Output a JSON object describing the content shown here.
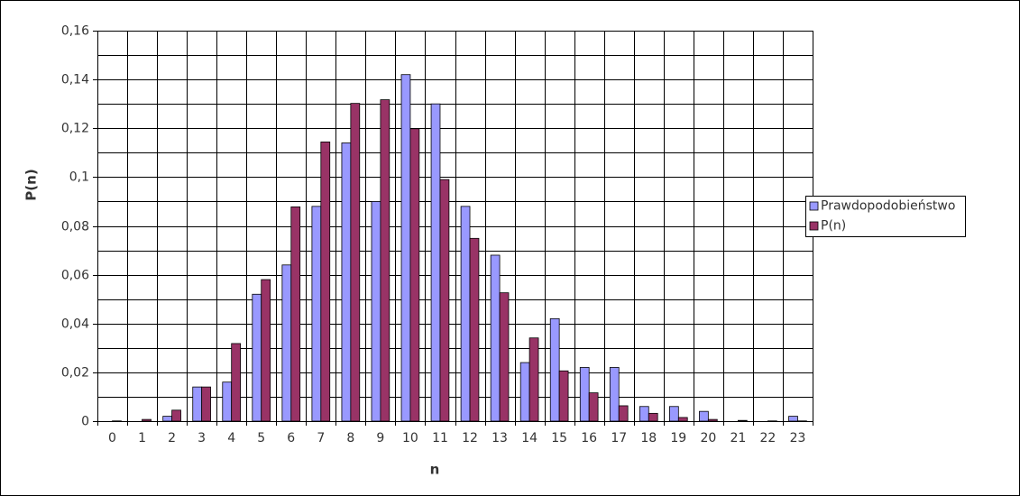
{
  "chart_data": {
    "type": "bar",
    "x_label": "n",
    "y_label": "P(n)",
    "categories": [
      "0",
      "1",
      "2",
      "3",
      "4",
      "5",
      "6",
      "7",
      "8",
      "9",
      "10",
      "11",
      "12",
      "13",
      "14",
      "15",
      "16",
      "17",
      "18",
      "19",
      "20",
      "21",
      "22",
      "23"
    ],
    "series": [
      {
        "name": "Prawdopodobieństwo",
        "color": "#9999ff",
        "values": [
          0,
          0,
          0.002,
          0.014,
          0.016,
          0.052,
          0.064,
          0.088,
          0.114,
          0.09,
          0.142,
          0.13,
          0.088,
          0.068,
          0.024,
          0.042,
          0.022,
          0.022,
          0.006,
          0.006,
          0.004,
          0,
          0,
          0.002
        ]
      },
      {
        "name": "P(n)",
        "color": "#993366",
        "values": [
          0.0001,
          0.0007,
          0.0045,
          0.014,
          0.0318,
          0.058,
          0.0878,
          0.1144,
          0.1302,
          0.1317,
          0.1198,
          0.099,
          0.0749,
          0.0526,
          0.0341,
          0.0206,
          0.0116,
          0.0063,
          0.0032,
          0.0015,
          0.0007,
          0.0003,
          0.0001,
          0.0001
        ]
      }
    ],
    "ylim": [
      0,
      0.16
    ],
    "yticks": [
      0,
      {
        "value": 0.02,
        "label": "0,02"
      },
      {
        "value": 0.04,
        "label": "0,04"
      },
      {
        "value": 0.06,
        "label": "0,06"
      },
      {
        "value": 0.08,
        "label": "0,08"
      },
      {
        "value": 0.1,
        "label": "0,1"
      },
      {
        "value": 0.12,
        "label": "0,12"
      },
      {
        "value": 0.14,
        "label": "0,14"
      },
      {
        "value": 0.16,
        "label": "0,16"
      }
    ],
    "yminorticks": [
      0.01,
      0.03,
      0.05,
      0.07,
      0.09,
      0.11,
      0.13,
      0.15
    ],
    "grid": true,
    "legend": "right"
  }
}
